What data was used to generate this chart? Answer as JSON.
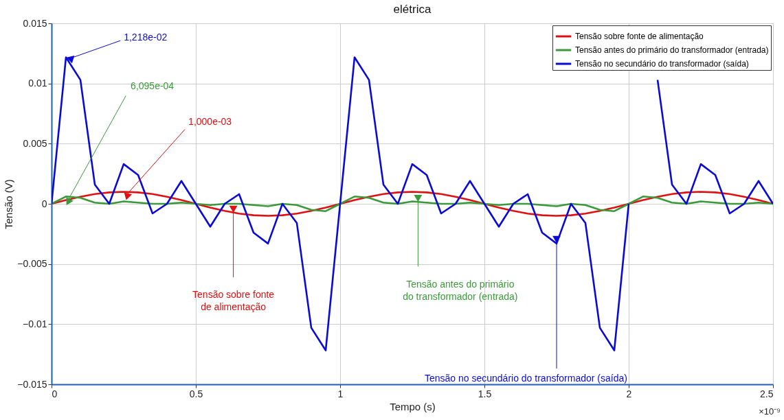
{
  "chart_data": {
    "type": "line",
    "title": "elétrica",
    "xlabel": "Tempo (s)",
    "ylabel": "Tensão (V)",
    "x": [
      0,
      0.05,
      0.1,
      0.15,
      0.2,
      0.25,
      0.3,
      0.35,
      0.4,
      0.45,
      0.5,
      0.55,
      0.6,
      0.65,
      0.7,
      0.75,
      0.8,
      0.85,
      0.9,
      0.95,
      1,
      1.05,
      1.1,
      1.15,
      1.2,
      1.25,
      1.3,
      1.35,
      1.4,
      1.45,
      1.5,
      1.55,
      1.6,
      1.65,
      1.7,
      1.75,
      1.8,
      1.85,
      1.9,
      1.95,
      2,
      2.05,
      2.1,
      2.15,
      2.2,
      2.25,
      2.3,
      2.35,
      2.4,
      2.45,
      2.5
    ],
    "series": [
      {
        "name": "Tensão sobre fonte de alimentação",
        "color": "#e01010",
        "values": [
          0,
          0.00031,
          0.00059,
          0.00081,
          0.00095,
          0.001,
          0.00095,
          0.00081,
          0.00059,
          0.00031,
          0,
          -0.00031,
          -0.00059,
          -0.00081,
          -0.00095,
          -0.001,
          -0.00095,
          -0.00081,
          -0.00059,
          -0.00031,
          0,
          0.00031,
          0.00059,
          0.00081,
          0.00095,
          0.001,
          0.00095,
          0.00081,
          0.00059,
          0.00031,
          0,
          -0.00031,
          -0.00059,
          -0.00081,
          -0.00095,
          -0.001,
          -0.00095,
          -0.00081,
          -0.00059,
          -0.00031,
          0,
          0.00031,
          0.00059,
          0.00081,
          0.00095,
          0.001,
          0.00095,
          0.00081,
          0.00059,
          0.00031,
          0
        ]
      },
      {
        "name": "Tensão antes do primário do transformador (entrada)",
        "color": "#3a9a3a",
        "values": [
          0,
          0.00061,
          0.0005,
          0.0001,
          0,
          0.0002,
          0.0001,
          0,
          0,
          0.0001,
          0,
          -0.0001,
          0,
          0,
          -0.0001,
          -0.0002,
          0,
          -0.0001,
          -0.0005,
          -0.00061,
          0,
          0.00061,
          0.0005,
          0.0001,
          0,
          0.0002,
          0.0001,
          0,
          0,
          0.0001,
          0,
          -0.0001,
          0,
          0,
          -0.0001,
          -0.0002,
          0,
          -0.0001,
          -0.0005,
          -0.00061,
          0,
          0.00061,
          0.0005,
          0.0001,
          0,
          0.0002,
          0.0001,
          0,
          0,
          0.0001,
          0
        ]
      },
      {
        "name": "Tensão no secundário do transformador (saída)",
        "color": "#0a0ad8",
        "values": [
          0,
          0.01218,
          0.0103,
          0.0016,
          0,
          0.0033,
          0.0024,
          -0.0008,
          0,
          0.0019,
          0,
          -0.0019,
          0,
          0.0008,
          -0.0024,
          -0.0033,
          0,
          -0.0016,
          -0.0103,
          -0.01218,
          0,
          0.01218,
          0.0103,
          0.0016,
          0,
          0.0033,
          0.0024,
          -0.0008,
          0,
          0.0019,
          0,
          -0.0019,
          0,
          0.0008,
          -0.0024,
          -0.0033,
          0,
          -0.0016,
          -0.0103,
          -0.01218,
          0,
          null,
          0.0103,
          0.0016,
          0,
          0.0033,
          0.0024,
          -0.0008,
          0,
          0.0019,
          0
        ]
      }
    ],
    "xlim": [
      0,
      2.5
    ],
    "xticks": [
      0,
      0.5,
      1,
      1.5,
      2,
      2.5
    ],
    "ylim": [
      -0.015,
      0.015
    ],
    "yticks": [
      -0.015,
      -0.01,
      -0.005,
      0,
      0.005,
      0.01,
      0.015
    ],
    "grid": true,
    "legend": "top right",
    "line_style": "solid",
    "marker": "none",
    "annotations": [
      {
        "text": "1,218e-02",
        "x": 0.05,
        "y": 0.01218
      },
      {
        "text": "6,095e-04",
        "x": 0.05,
        "y": 0.00061
      },
      {
        "text": "1,000e-03",
        "x": 0.25,
        "y": 0.001
      },
      {
        "text": "Tensão sobre fonte\nde alimentação",
        "x": 0.63,
        "y": -0.0008
      },
      {
        "text": "Tensão antes do primário\ndo transformador (entrada)",
        "x": 1.27,
        "y": 0.0001
      },
      {
        "text": "Tensão no secundário do transformador (saída)",
        "x": 1.75,
        "y": -0.0033
      },
      "×10⁻⁹"
    ]
  }
}
